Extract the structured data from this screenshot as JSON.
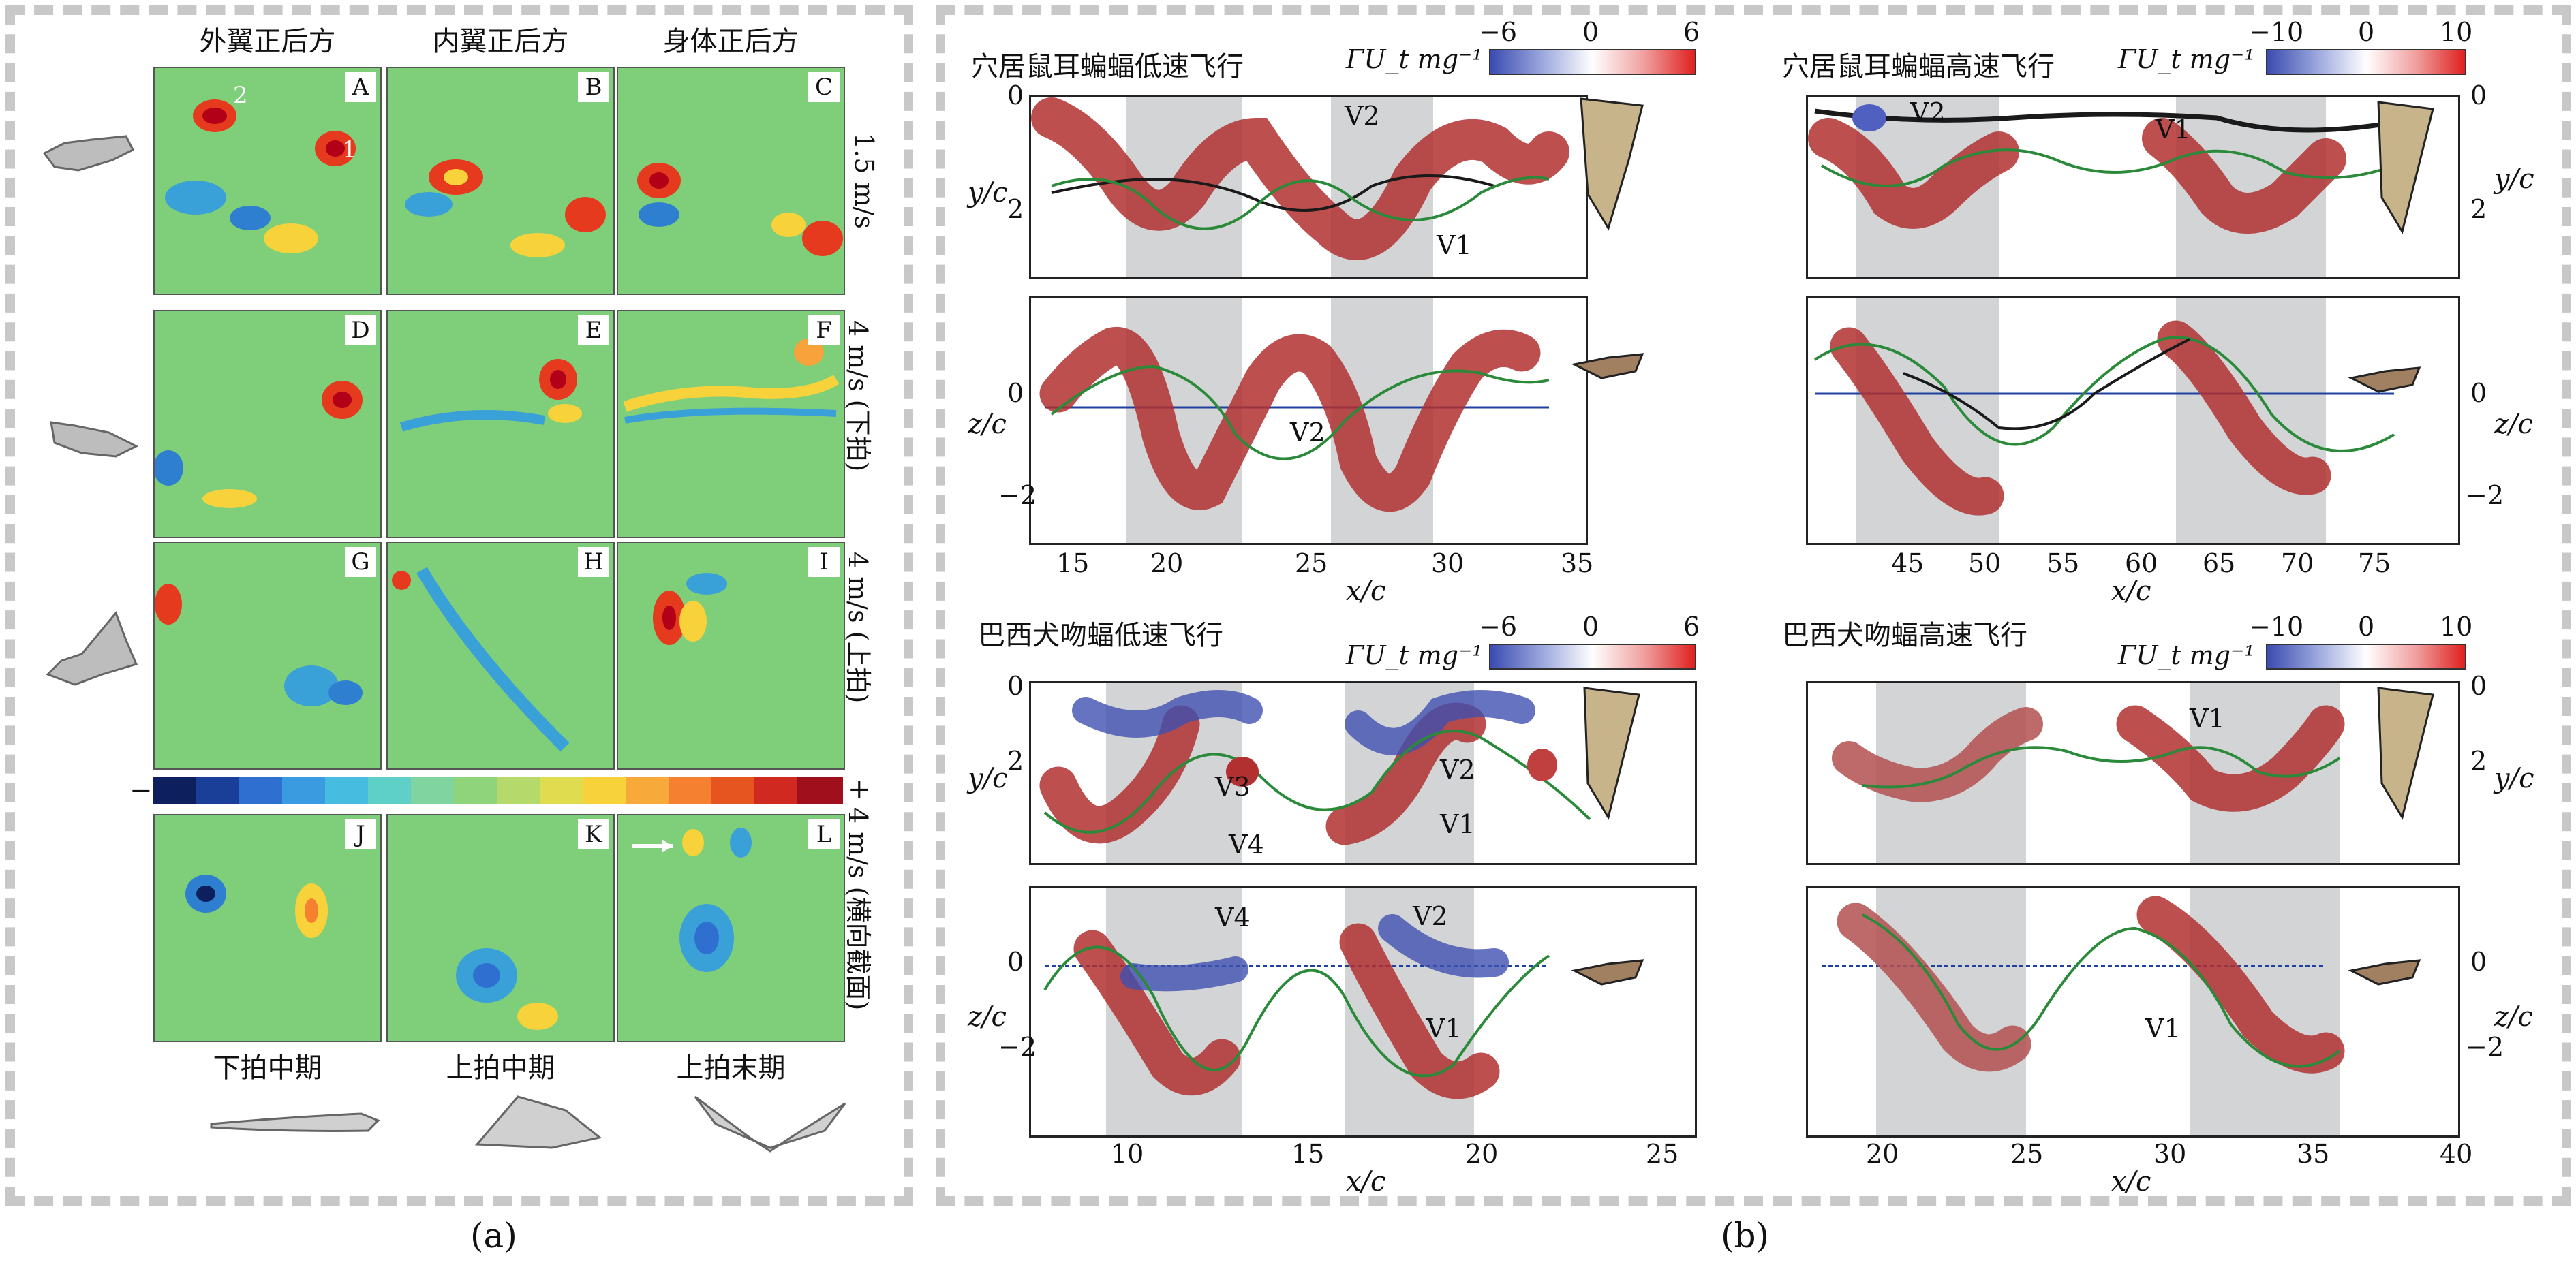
{
  "panel_a": {
    "label": "(a)",
    "column_headers": [
      "外翼正后方",
      "内翼正后方",
      "身体正后方"
    ],
    "panel_letters": [
      "A",
      "B",
      "C",
      "D",
      "E",
      "F",
      "G",
      "H",
      "I",
      "J",
      "K",
      "L"
    ],
    "vortex_markers": [
      "2",
      "1"
    ],
    "row_speed_labels": [
      "1.5 m/s",
      "4 m/s (下拍)",
      "4 m/s (上拍)",
      "4 m/s (横向截面)"
    ],
    "colorbar_minus": "−",
    "colorbar_plus": "+",
    "phase_labels": [
      "下拍中期",
      "上拍中期",
      "上拍末期"
    ]
  },
  "panel_b": {
    "label": "(b)",
    "plots": [
      {
        "title": "穴居鼠耳蝙蝠低速飞行",
        "colorbar_label": "ΓU_t mg⁻¹",
        "colorbar_ticks": [
          "−6",
          "0",
          "6"
        ],
        "top_ylabel": "y/c",
        "top_yticks": [
          "0",
          "2"
        ],
        "bottom_ylabel": "z/c",
        "bottom_yticks": [
          "0",
          "−2"
        ],
        "xlabel": "x/c",
        "xticks": [
          "15",
          "20",
          "25",
          "30",
          "35"
        ],
        "top_vortex_labels": [
          "V2",
          "V1"
        ],
        "bottom_vortex_labels": [
          "V2"
        ]
      },
      {
        "title": "穴居鼠耳蝙蝠高速飞行",
        "colorbar_label": "ΓU_t mg⁻¹",
        "colorbar_ticks": [
          "−10",
          "0",
          "10"
        ],
        "top_ylabel": "y/c",
        "top_yticks": [
          "0",
          "2"
        ],
        "bottom_ylabel": "z/c",
        "bottom_yticks": [
          "0",
          "−2"
        ],
        "xlabel": "x/c",
        "xticks": [
          "45",
          "50",
          "55",
          "60",
          "65",
          "70",
          "75"
        ],
        "top_vortex_labels": [
          "V2",
          "V1"
        ],
        "bottom_vortex_labels": []
      },
      {
        "title": "巴西犬吻蝠低速飞行",
        "colorbar_label": "ΓU_t mg⁻¹",
        "colorbar_ticks": [
          "−6",
          "0",
          "6"
        ],
        "top_ylabel": "y/c",
        "top_yticks": [
          "0",
          "2"
        ],
        "bottom_ylabel": "z/c",
        "bottom_yticks": [
          "0",
          "−2"
        ],
        "xlabel": "x/c",
        "xticks": [
          "10",
          "15",
          "20",
          "25"
        ],
        "top_vortex_labels": [
          "V2",
          "V3",
          "V1",
          "V4"
        ],
        "bottom_vortex_labels": [
          "V4",
          "V2",
          "V1"
        ]
      },
      {
        "title": "巴西犬吻蝠高速飞行",
        "colorbar_label": "ΓU_t mg⁻¹",
        "colorbar_ticks": [
          "−10",
          "0",
          "10"
        ],
        "top_ylabel": "y/c",
        "top_yticks": [
          "0",
          "2"
        ],
        "bottom_ylabel": "z/c",
        "bottom_yticks": [
          "0",
          "−2"
        ],
        "xlabel": "x/c",
        "xticks": [
          "20",
          "25",
          "30",
          "35",
          "40"
        ],
        "top_vortex_labels": [
          "V1"
        ],
        "bottom_vortex_labels": [
          "V1"
        ]
      }
    ]
  }
}
